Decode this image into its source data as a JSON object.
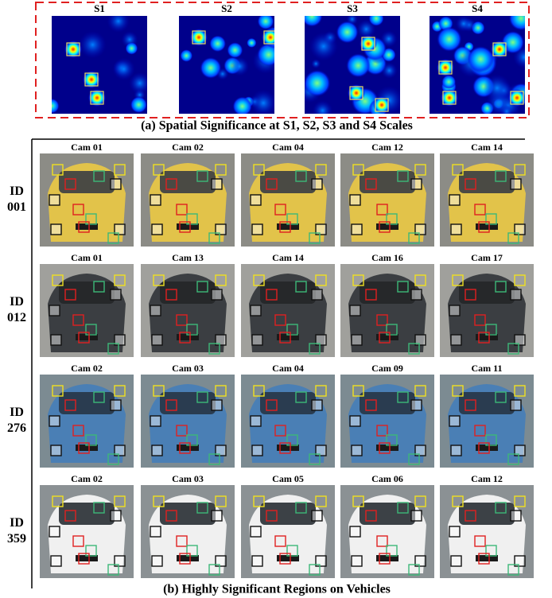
{
  "top": {
    "scales": [
      "S1",
      "S2",
      "S3",
      "S4"
    ],
    "caption": "(a) Spatial Significance at S1, S2, S3 and S4 Scales"
  },
  "bottom": {
    "rows": [
      {
        "id_label": "ID",
        "id_number": "001",
        "cameras": [
          "Cam 01",
          "Cam 02",
          "Cam 04",
          "Cam 12",
          "Cam 14"
        ]
      },
      {
        "id_label": "ID",
        "id_number": "012",
        "cameras": [
          "Cam 01",
          "Cam 13",
          "Cam 14",
          "Cam 16",
          "Cam 17"
        ]
      },
      {
        "id_label": "ID",
        "id_number": "276",
        "cameras": [
          "Cam 02",
          "Cam 03",
          "Cam 04",
          "Cam 09",
          "Cam 11"
        ]
      },
      {
        "id_label": "ID",
        "id_number": "359",
        "cameras": [
          "Cam 02",
          "Cam 03",
          "Cam 05",
          "Cam 06",
          "Cam 12"
        ]
      }
    ],
    "caption": "(b) Highly Significant Regions on Vehicles"
  }
}
